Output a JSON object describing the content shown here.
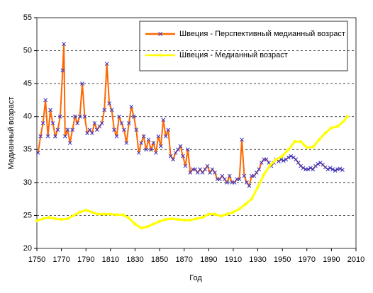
{
  "chart_data": {
    "type": "line",
    "x_label": "Год",
    "y_label": "Медианный возраст",
    "xlim": [
      1750,
      2010
    ],
    "xticks": [
      1750,
      1770,
      1790,
      1810,
      1830,
      1850,
      1870,
      1890,
      1910,
      1930,
      1950,
      1970,
      1990,
      2010
    ],
    "ylim": [
      20,
      55
    ],
    "yticks": [
      20,
      25,
      30,
      35,
      40,
      45,
      50,
      55
    ],
    "grid": true,
    "legend": "top-right",
    "series": [
      {
        "name": "Швеция - Перспективный медианный возраст",
        "color": "#ff6600",
        "marker_color": "#3333cc",
        "x": [
          1751,
          1753,
          1755,
          1757,
          1759,
          1761,
          1763,
          1765,
          1767,
          1769,
          1771,
          1772,
          1773,
          1775,
          1777,
          1779,
          1781,
          1783,
          1785,
          1787,
          1789,
          1791,
          1793,
          1795,
          1797,
          1799,
          1801,
          1803,
          1805,
          1807,
          1809,
          1811,
          1813,
          1815,
          1817,
          1819,
          1821,
          1823,
          1825,
          1827,
          1829,
          1831,
          1833,
          1835,
          1837,
          1839,
          1841,
          1843,
          1845,
          1847,
          1849,
          1851,
          1853,
          1855,
          1857,
          1859,
          1861,
          1863,
          1865,
          1867,
          1869,
          1871,
          1873,
          1875,
          1877,
          1879,
          1881,
          1883,
          1885,
          1887,
          1889,
          1891,
          1893,
          1895,
          1897,
          1899,
          1901,
          1903,
          1905,
          1907,
          1909,
          1911,
          1913,
          1915,
          1917,
          1919,
          1921,
          1923,
          1925,
          1927,
          1929,
          1931,
          1933,
          1935,
          1937,
          1939,
          1941,
          1943,
          1945,
          1947,
          1949,
          1951,
          1953,
          1955,
          1957,
          1959,
          1961,
          1963,
          1965,
          1967,
          1969,
          1971,
          1973,
          1975,
          1977,
          1979,
          1981,
          1983,
          1985,
          1987,
          1989,
          1991,
          1993,
          1995,
          1997,
          1999
        ],
        "values": [
          34.5,
          37,
          39,
          42.5,
          37,
          41,
          39,
          37,
          38,
          40,
          47,
          51,
          37,
          38,
          36,
          38,
          40,
          39,
          40,
          45,
          40,
          37.5,
          38,
          37.5,
          39,
          38,
          38.5,
          39,
          41,
          48,
          42,
          41,
          38,
          37,
          40,
          39,
          38,
          36,
          39,
          41.5,
          40,
          38,
          34.5,
          36,
          37,
          35,
          36.5,
          35,
          36,
          34.5,
          37,
          35.5,
          39.5,
          37,
          38,
          34,
          33.5,
          34.5,
          35,
          35.5,
          34,
          32.5,
          35,
          31.5,
          32,
          32,
          31.5,
          32,
          31.5,
          32,
          32.5,
          31.5,
          32,
          31.5,
          30.5,
          30.5,
          31,
          30.5,
          30,
          31,
          30,
          30,
          30.5,
          30.5,
          36.5,
          31,
          30,
          29.5,
          31,
          31,
          31.5,
          32,
          33,
          33.5,
          33.5,
          33,
          32.5,
          33,
          33.5,
          33.2,
          33.5,
          33.3,
          33.5,
          33.8,
          34,
          33.8,
          33.5,
          33,
          32.5,
          32.2,
          32,
          32,
          32.2,
          32,
          32.5,
          32.8,
          33,
          32.7,
          32.3,
          32,
          32.2,
          32,
          31.8,
          32,
          32.1,
          31.9
        ]
      },
      {
        "name": "Швеция - Медианный возраст",
        "color": "#ffff00",
        "marker_color": "#ffff00",
        "x": [
          1750,
          1755,
          1760,
          1765,
          1770,
          1775,
          1780,
          1785,
          1790,
          1795,
          1800,
          1805,
          1810,
          1815,
          1820,
          1825,
          1830,
          1835,
          1840,
          1845,
          1850,
          1855,
          1860,
          1865,
          1870,
          1875,
          1880,
          1885,
          1890,
          1895,
          1900,
          1905,
          1910,
          1915,
          1920,
          1925,
          1930,
          1935,
          1940,
          1945,
          1950,
          1955,
          1960,
          1965,
          1970,
          1975,
          1980,
          1985,
          1990,
          1995,
          2000,
          2003
        ],
        "values": [
          24.2,
          24.5,
          24.7,
          24.5,
          24.4,
          24.5,
          25,
          25.5,
          25.8,
          25.5,
          25.2,
          25.2,
          25.2,
          25.1,
          25.1,
          24.6,
          23.7,
          23.1,
          23.3,
          23.7,
          24.1,
          24.4,
          24.5,
          24.4,
          24.3,
          24.3,
          24.5,
          24.7,
          25.2,
          25.2,
          24.9,
          25.2,
          25.5,
          26,
          26.7,
          27.5,
          29.3,
          31.2,
          32.6,
          33.5,
          34,
          35,
          36.2,
          36.2,
          35.3,
          35.4,
          36.5,
          37.5,
          38.3,
          38.5,
          39.3,
          40
        ]
      }
    ]
  }
}
